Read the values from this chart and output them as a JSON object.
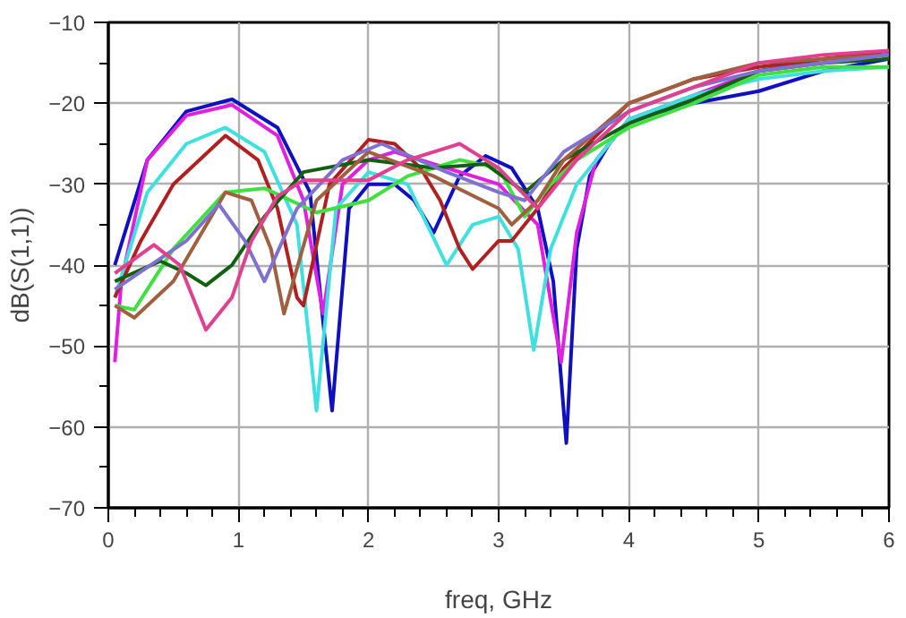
{
  "chart_data": {
    "type": "line",
    "xlabel": "freq, GHz",
    "ylabel": "dB(S(1,1))",
    "xlim": [
      0,
      6
    ],
    "ylim": [
      -70,
      -10
    ],
    "xticks": [
      0,
      1,
      2,
      3,
      4,
      5,
      6
    ],
    "yticks": [
      -70,
      -60,
      -50,
      -40,
      -30,
      -20,
      -10
    ],
    "grid": true,
    "line_style": "solid",
    "series": [
      {
        "color": "#1010c0",
        "x": [
          0.05,
          0.3,
          0.6,
          0.95,
          1.3,
          1.55,
          1.72,
          1.85,
          2.0,
          2.2,
          2.35,
          2.5,
          2.7,
          2.9,
          3.1,
          3.3,
          3.42,
          3.52,
          3.6,
          3.7,
          3.85,
          4.0,
          4.5,
          5.0,
          5.5,
          6.0
        ],
        "values": [
          -40,
          -27,
          -21,
          -19.5,
          -23,
          -31,
          -58,
          -33,
          -30,
          -30,
          -32,
          -36,
          -29,
          -26.5,
          -28,
          -33,
          -42,
          -62,
          -38,
          -29,
          -25,
          -22,
          -20,
          -18.5,
          -16,
          -14.5
        ]
      },
      {
        "color": "#e020e0",
        "x": [
          0.05,
          0.1,
          0.3,
          0.6,
          0.95,
          1.3,
          1.5,
          1.65,
          1.8,
          2.0,
          2.2,
          2.6,
          3.0,
          3.3,
          3.48,
          3.6,
          3.75,
          4.0,
          4.5,
          5.0,
          5.5,
          6.0
        ],
        "values": [
          -52,
          -42,
          -27,
          -21.5,
          -20.2,
          -24,
          -32,
          -46,
          -30,
          -27,
          -26,
          -28,
          -30,
          -35,
          -52,
          -36,
          -27,
          -22,
          -19,
          -16,
          -14.5,
          -14
        ]
      },
      {
        "color": "#40e0e0",
        "x": [
          0.05,
          0.3,
          0.6,
          0.9,
          1.2,
          1.45,
          1.6,
          1.75,
          2.0,
          2.3,
          2.45,
          2.6,
          2.8,
          3.0,
          3.15,
          3.27,
          3.4,
          3.6,
          4.0,
          4.5,
          5.0,
          5.5,
          6.0
        ],
        "values": [
          -44,
          -31,
          -25,
          -23,
          -26,
          -35,
          -58,
          -33,
          -28.5,
          -30,
          -35,
          -40,
          -35,
          -34,
          -38,
          -50.5,
          -38,
          -30,
          -22,
          -19,
          -17,
          -16,
          -15.5
        ]
      },
      {
        "color": "#b02020",
        "x": [
          0.05,
          0.25,
          0.5,
          0.9,
          1.15,
          1.3,
          1.45,
          1.5,
          1.7,
          2.0,
          2.2,
          2.4,
          2.55,
          2.7,
          2.8,
          3.0,
          3.1,
          3.3,
          3.5,
          4.0,
          4.5,
          5.0,
          5.5,
          6.0
        ],
        "values": [
          -44,
          -37,
          -30,
          -24,
          -27,
          -33,
          -44,
          -45,
          -30,
          -24.5,
          -25,
          -28,
          -32,
          -38,
          -40.5,
          -37,
          -37,
          -33,
          -28,
          -20,
          -17,
          -15.5,
          -14.5,
          -13.5
        ]
      },
      {
        "color": "#40e040",
        "x": [
          0.05,
          0.2,
          0.5,
          0.9,
          1.2,
          1.6,
          2.0,
          2.3,
          2.7,
          3.0,
          3.2,
          3.4,
          3.6,
          4.0,
          4.5,
          5.0,
          5.5,
          6.0
        ],
        "values": [
          -45,
          -45.5,
          -38,
          -31,
          -30.5,
          -33.5,
          -32,
          -29,
          -27,
          -28,
          -34,
          -30,
          -27,
          -23,
          -20,
          -16.5,
          -15.5,
          -15.5
        ]
      },
      {
        "color": "#106010",
        "x": [
          0.05,
          0.4,
          0.6,
          0.75,
          0.95,
          1.2,
          1.5,
          2.0,
          2.5,
          2.9,
          3.2,
          3.5,
          4.0,
          4.5,
          5.0,
          5.5,
          6.0
        ],
        "values": [
          -42,
          -39.5,
          -41,
          -42.5,
          -40,
          -34,
          -28.5,
          -27,
          -28,
          -27.5,
          -31,
          -27,
          -22.5,
          -19.5,
          -16,
          -15,
          -14.5
        ]
      },
      {
        "color": "#a06040",
        "x": [
          0.05,
          0.2,
          0.5,
          0.9,
          1.1,
          1.25,
          1.35,
          1.6,
          2.0,
          2.5,
          3.0,
          3.1,
          3.3,
          3.5,
          4.0,
          4.5,
          5.0,
          5.5,
          6.0
        ],
        "values": [
          -45,
          -46.5,
          -42,
          -31,
          -32,
          -38,
          -46,
          -32,
          -26,
          -29,
          -33,
          -35,
          -32,
          -27,
          -20,
          -17,
          -15,
          -14.5,
          -14
        ]
      },
      {
        "color": "#8070d0",
        "x": [
          0.05,
          0.6,
          0.85,
          1.05,
          1.2,
          1.45,
          1.8,
          2.1,
          2.6,
          3.0,
          3.2,
          3.5,
          4.0,
          4.5,
          5.0,
          5.5,
          6.0
        ],
        "values": [
          -43,
          -37,
          -32.5,
          -37,
          -42,
          -33,
          -27,
          -25,
          -28.5,
          -31,
          -32,
          -26,
          -21,
          -18,
          -16,
          -15,
          -14
        ]
      },
      {
        "color": "#e04090",
        "x": [
          0.05,
          0.35,
          0.55,
          0.75,
          0.95,
          1.1,
          1.3,
          1.5,
          2.0,
          2.3,
          2.7,
          3.0,
          3.3,
          3.6,
          4.0,
          4.5,
          5.0,
          5.5,
          6.0
        ],
        "values": [
          -41,
          -37.5,
          -40,
          -48,
          -44,
          -37,
          -31.5,
          -29.5,
          -29.5,
          -27,
          -25,
          -28,
          -33,
          -27,
          -21,
          -18,
          -15,
          -14,
          -13.5
        ]
      }
    ]
  }
}
